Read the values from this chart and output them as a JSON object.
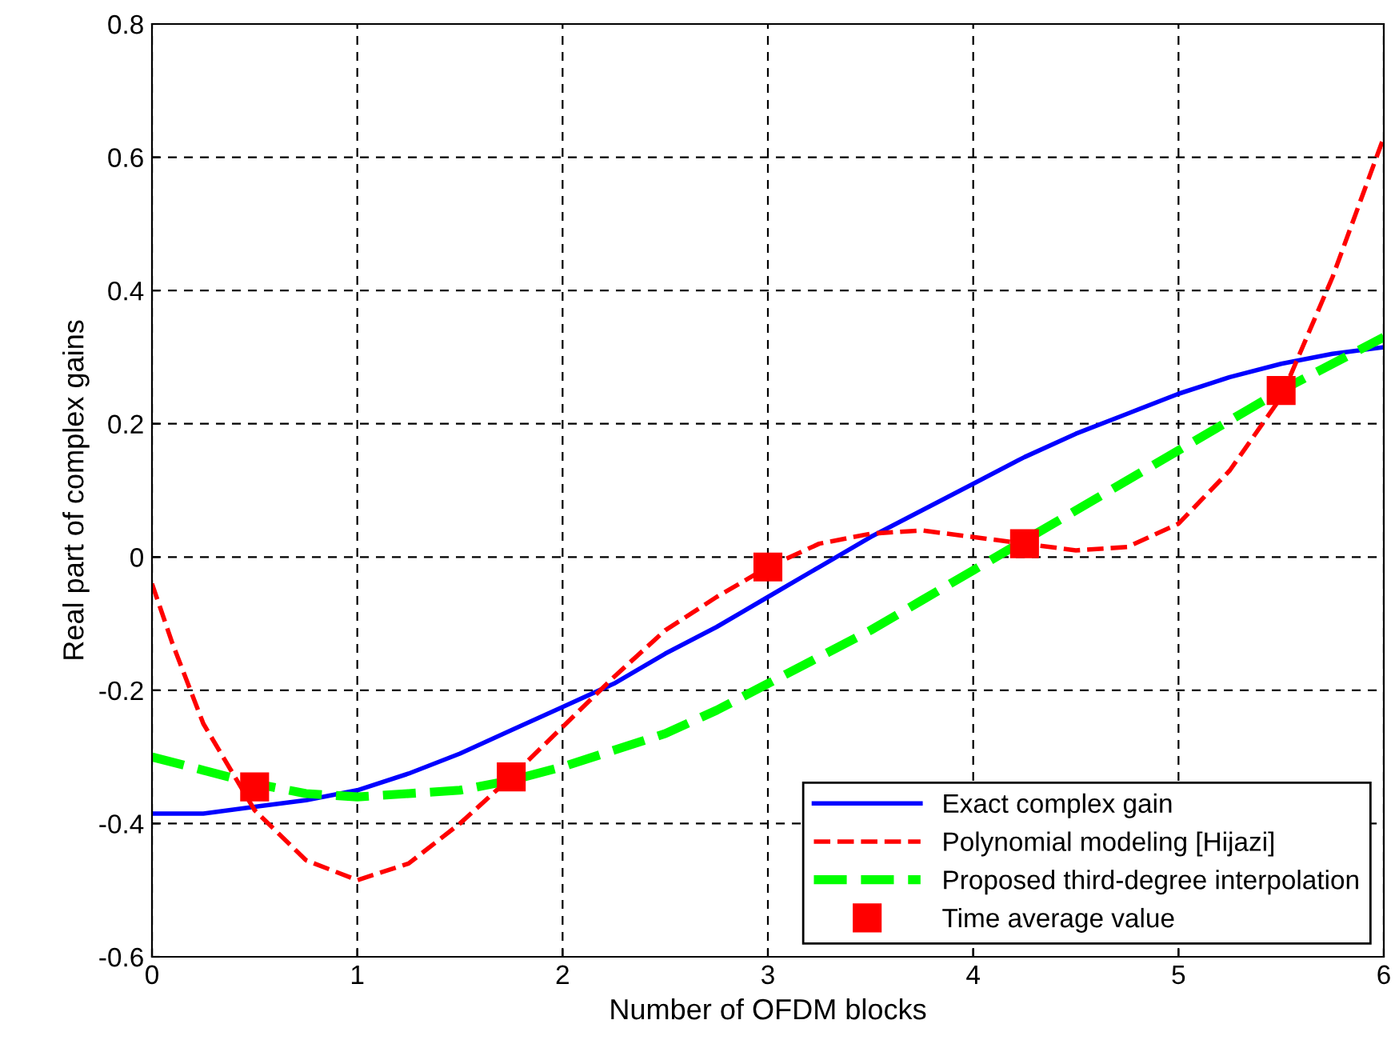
{
  "chart_data": {
    "type": "line",
    "xlabel": "Number of OFDM blocks",
    "ylabel": "Real part of complex gains",
    "xlim": [
      0,
      6
    ],
    "xticks": [
      0,
      1,
      2,
      3,
      4,
      5,
      6
    ],
    "ylim": [
      -0.6,
      0.8
    ],
    "yticks": [
      -0.6,
      -0.4,
      -0.2,
      0,
      0.2,
      0.4,
      0.6,
      0.8
    ],
    "grid": true,
    "legend": "bottom right",
    "series": [
      {
        "name": "Exact complex gain",
        "color": "#0000ff",
        "line_style": "solid",
        "x": [
          0,
          0.25,
          0.5,
          0.75,
          1,
          1.25,
          1.5,
          1.75,
          2,
          2.25,
          2.5,
          2.75,
          3,
          3.25,
          3.5,
          3.75,
          4,
          4.25,
          4.5,
          4.75,
          5,
          5.25,
          5.5,
          5.75,
          6
        ],
        "values": [
          -0.385,
          -0.385,
          -0.375,
          -0.365,
          -0.35,
          -0.325,
          -0.295,
          -0.26,
          -0.225,
          -0.19,
          -0.145,
          -0.105,
          -0.06,
          -0.015,
          0.03,
          0.07,
          0.11,
          0.15,
          0.185,
          0.215,
          0.245,
          0.27,
          0.29,
          0.305,
          0.315
        ]
      },
      {
        "name": "Polynomial modeling [Hijazi]",
        "color": "#ff0000",
        "line_style": "dashed",
        "x": [
          0,
          0.1,
          0.25,
          0.5,
          0.75,
          1,
          1.25,
          1.5,
          1.75,
          2,
          2.25,
          2.5,
          2.75,
          3,
          3.25,
          3.5,
          3.75,
          4,
          4.25,
          4.5,
          4.75,
          5,
          5.25,
          5.5,
          5.75,
          6
        ],
        "values": [
          -0.04,
          -0.13,
          -0.25,
          -0.38,
          -0.455,
          -0.485,
          -0.46,
          -0.4,
          -0.33,
          -0.255,
          -0.18,
          -0.11,
          -0.06,
          -0.015,
          0.02,
          0.035,
          0.04,
          0.03,
          0.02,
          0.01,
          0.015,
          0.05,
          0.13,
          0.24,
          0.42,
          0.63
        ]
      },
      {
        "name": "Proposed third-degree interpolation",
        "color": "#00ff00",
        "line_style": "dashed",
        "x": [
          0,
          0.25,
          0.5,
          0.75,
          1,
          1.25,
          1.5,
          1.75,
          2,
          2.25,
          2.5,
          2.75,
          3,
          3.25,
          3.5,
          3.75,
          4,
          4.25,
          4.5,
          4.75,
          5,
          5.25,
          5.5,
          5.75,
          6
        ],
        "values": [
          -0.3,
          -0.32,
          -0.34,
          -0.355,
          -0.36,
          -0.355,
          -0.35,
          -0.335,
          -0.315,
          -0.29,
          -0.265,
          -0.23,
          -0.19,
          -0.15,
          -0.11,
          -0.065,
          -0.02,
          0.025,
          0.07,
          0.115,
          0.16,
          0.205,
          0.25,
          0.29,
          0.33
        ]
      },
      {
        "name": "Time average value",
        "type": "scatter",
        "marker": "square",
        "color": "#ff0000",
        "x": [
          0.5,
          1.75,
          3,
          4.25,
          5.5
        ],
        "values": [
          -0.345,
          -0.33,
          -0.015,
          0.02,
          0.25
        ]
      }
    ]
  }
}
